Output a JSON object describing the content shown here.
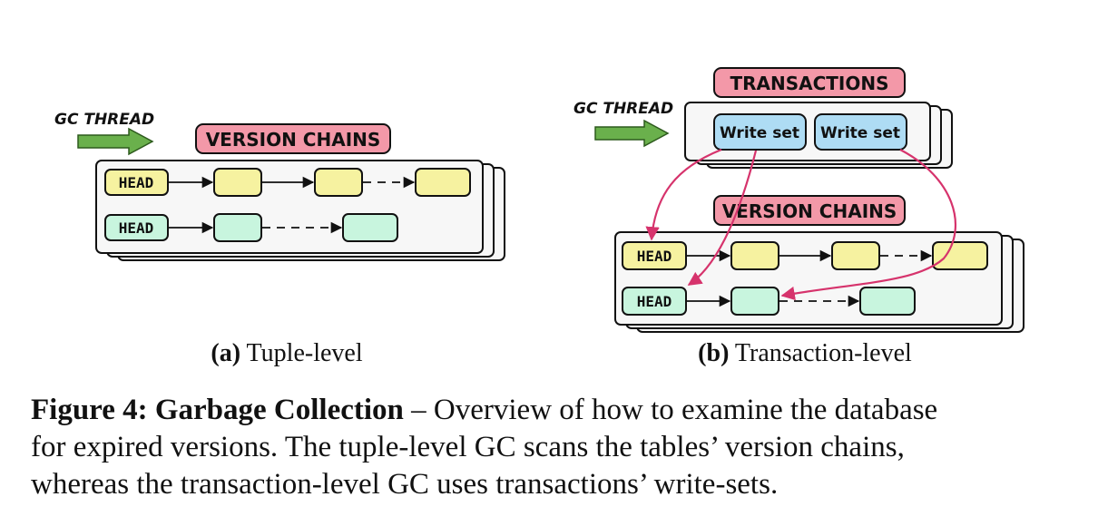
{
  "colors": {
    "pink_label": "#f398a8",
    "yellow_node": "#f6f2a0",
    "green_node": "#c8f5de",
    "blue_writeset": "#aedcf4",
    "gc_arrow": "#6ab04c",
    "pointer_arrow": "#d6336c",
    "panel_fill": "#f7f7f7"
  },
  "panel_a": {
    "gc_thread": "GC THREAD",
    "version_chains": "VERSION CHAINS",
    "head_1": "HEAD",
    "head_2": "HEAD",
    "subcaption_letter": "(a)",
    "subcaption_text": " Tuple-level"
  },
  "panel_b": {
    "gc_thread": "GC THREAD",
    "transactions": "TRANSACTIONS",
    "write_set_1": "Write set",
    "write_set_2": "Write set",
    "version_chains": "VERSION CHAINS",
    "head_1": "HEAD",
    "head_2": "HEAD",
    "subcaption_letter": "(b)",
    "subcaption_text": " Transaction-level"
  },
  "caption": {
    "label": "Figure 4: Garbage Collection",
    "line1_rest": " – Overview of how to examine the database",
    "line2": "for expired versions. The tuple-level GC scans the tables’ version chains,",
    "line3": "whereas the transaction-level GC uses transactions’ write-sets."
  }
}
